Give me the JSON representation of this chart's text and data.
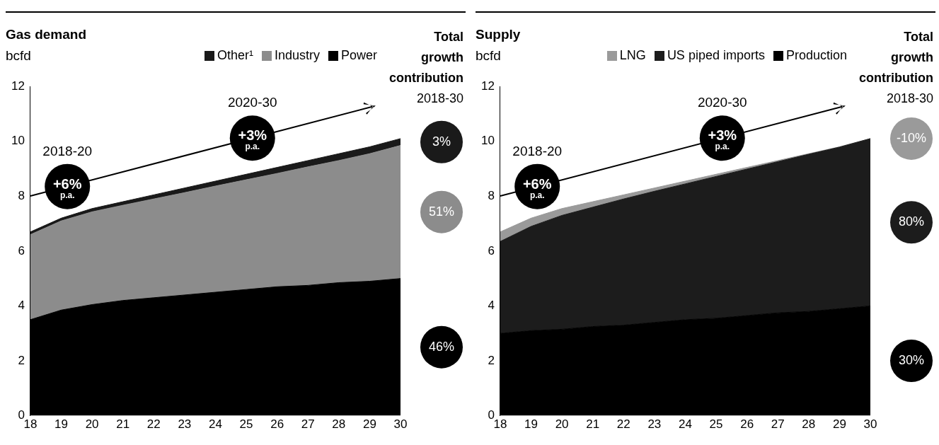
{
  "chart_data": [
    {
      "type": "area",
      "title": "Gas demand",
      "ylabel": "bcfd",
      "stacked": true,
      "legend": "top right",
      "x": [
        18,
        19,
        20,
        21,
        22,
        23,
        24,
        25,
        26,
        27,
        28,
        29,
        30
      ],
      "xlim": [
        18,
        30
      ],
      "xticks": [
        18,
        19,
        20,
        21,
        22,
        23,
        24,
        25,
        26,
        27,
        28,
        29,
        30
      ],
      "ylim": [
        0,
        12
      ],
      "yticks": [
        0,
        2,
        4,
        6,
        8,
        10,
        12
      ],
      "series": [
        {
          "name": "Power",
          "color": "#000000",
          "values": [
            3.5,
            3.85,
            4.05,
            4.2,
            4.3,
            4.4,
            4.5,
            4.6,
            4.7,
            4.75,
            4.85,
            4.9,
            5.0
          ]
        },
        {
          "name": "Industry",
          "color": "#8c8c8c",
          "values": [
            3.1,
            3.25,
            3.38,
            3.47,
            3.6,
            3.73,
            3.87,
            4.0,
            4.13,
            4.32,
            4.45,
            4.65,
            4.85
          ]
        },
        {
          "name": "Other¹",
          "color": "#1a1a1a",
          "values": [
            0.1,
            0.1,
            0.12,
            0.13,
            0.15,
            0.17,
            0.18,
            0.2,
            0.22,
            0.23,
            0.25,
            0.25,
            0.25
          ]
        }
      ],
      "annotations": [
        "2018-20",
        "+6% p.a.",
        "2020-30",
        "+3% p.a.",
        "Total growth contribution",
        "2018-30",
        "3%",
        "51%",
        "46%"
      ]
    },
    {
      "type": "area",
      "title": "Supply",
      "ylabel": "bcfd",
      "stacked": true,
      "legend": "top right",
      "x": [
        18,
        19,
        20,
        21,
        22,
        23,
        24,
        25,
        26,
        27,
        28,
        29,
        30
      ],
      "xlim": [
        18,
        30
      ],
      "xticks": [
        18,
        19,
        20,
        21,
        22,
        23,
        24,
        25,
        26,
        27,
        28,
        29,
        30
      ],
      "ylim": [
        0,
        12
      ],
      "yticks": [
        0,
        2,
        4,
        6,
        8,
        10,
        12
      ],
      "series": [
        {
          "name": "Production",
          "color": "#000000",
          "values": [
            3.0,
            3.1,
            3.15,
            3.25,
            3.3,
            3.4,
            3.5,
            3.55,
            3.65,
            3.75,
            3.8,
            3.9,
            4.0
          ]
        },
        {
          "name": "US piped imports",
          "color": "#1c1c1c",
          "values": [
            3.35,
            3.8,
            4.15,
            4.35,
            4.6,
            4.78,
            4.95,
            5.17,
            5.34,
            5.51,
            5.73,
            5.89,
            6.1
          ]
        },
        {
          "name": "LNG",
          "color": "#9a9a9a",
          "values": [
            0.35,
            0.3,
            0.25,
            0.2,
            0.15,
            0.12,
            0.1,
            0.08,
            0.06,
            0.04,
            0.02,
            0.01,
            0
          ]
        }
      ],
      "annotations": [
        "2018-20",
        "+6% p.a.",
        "2020-30",
        "+3% p.a.",
        "Total growth contribution",
        "2018-30",
        "-10%",
        "80%",
        "30%"
      ]
    }
  ]
}
